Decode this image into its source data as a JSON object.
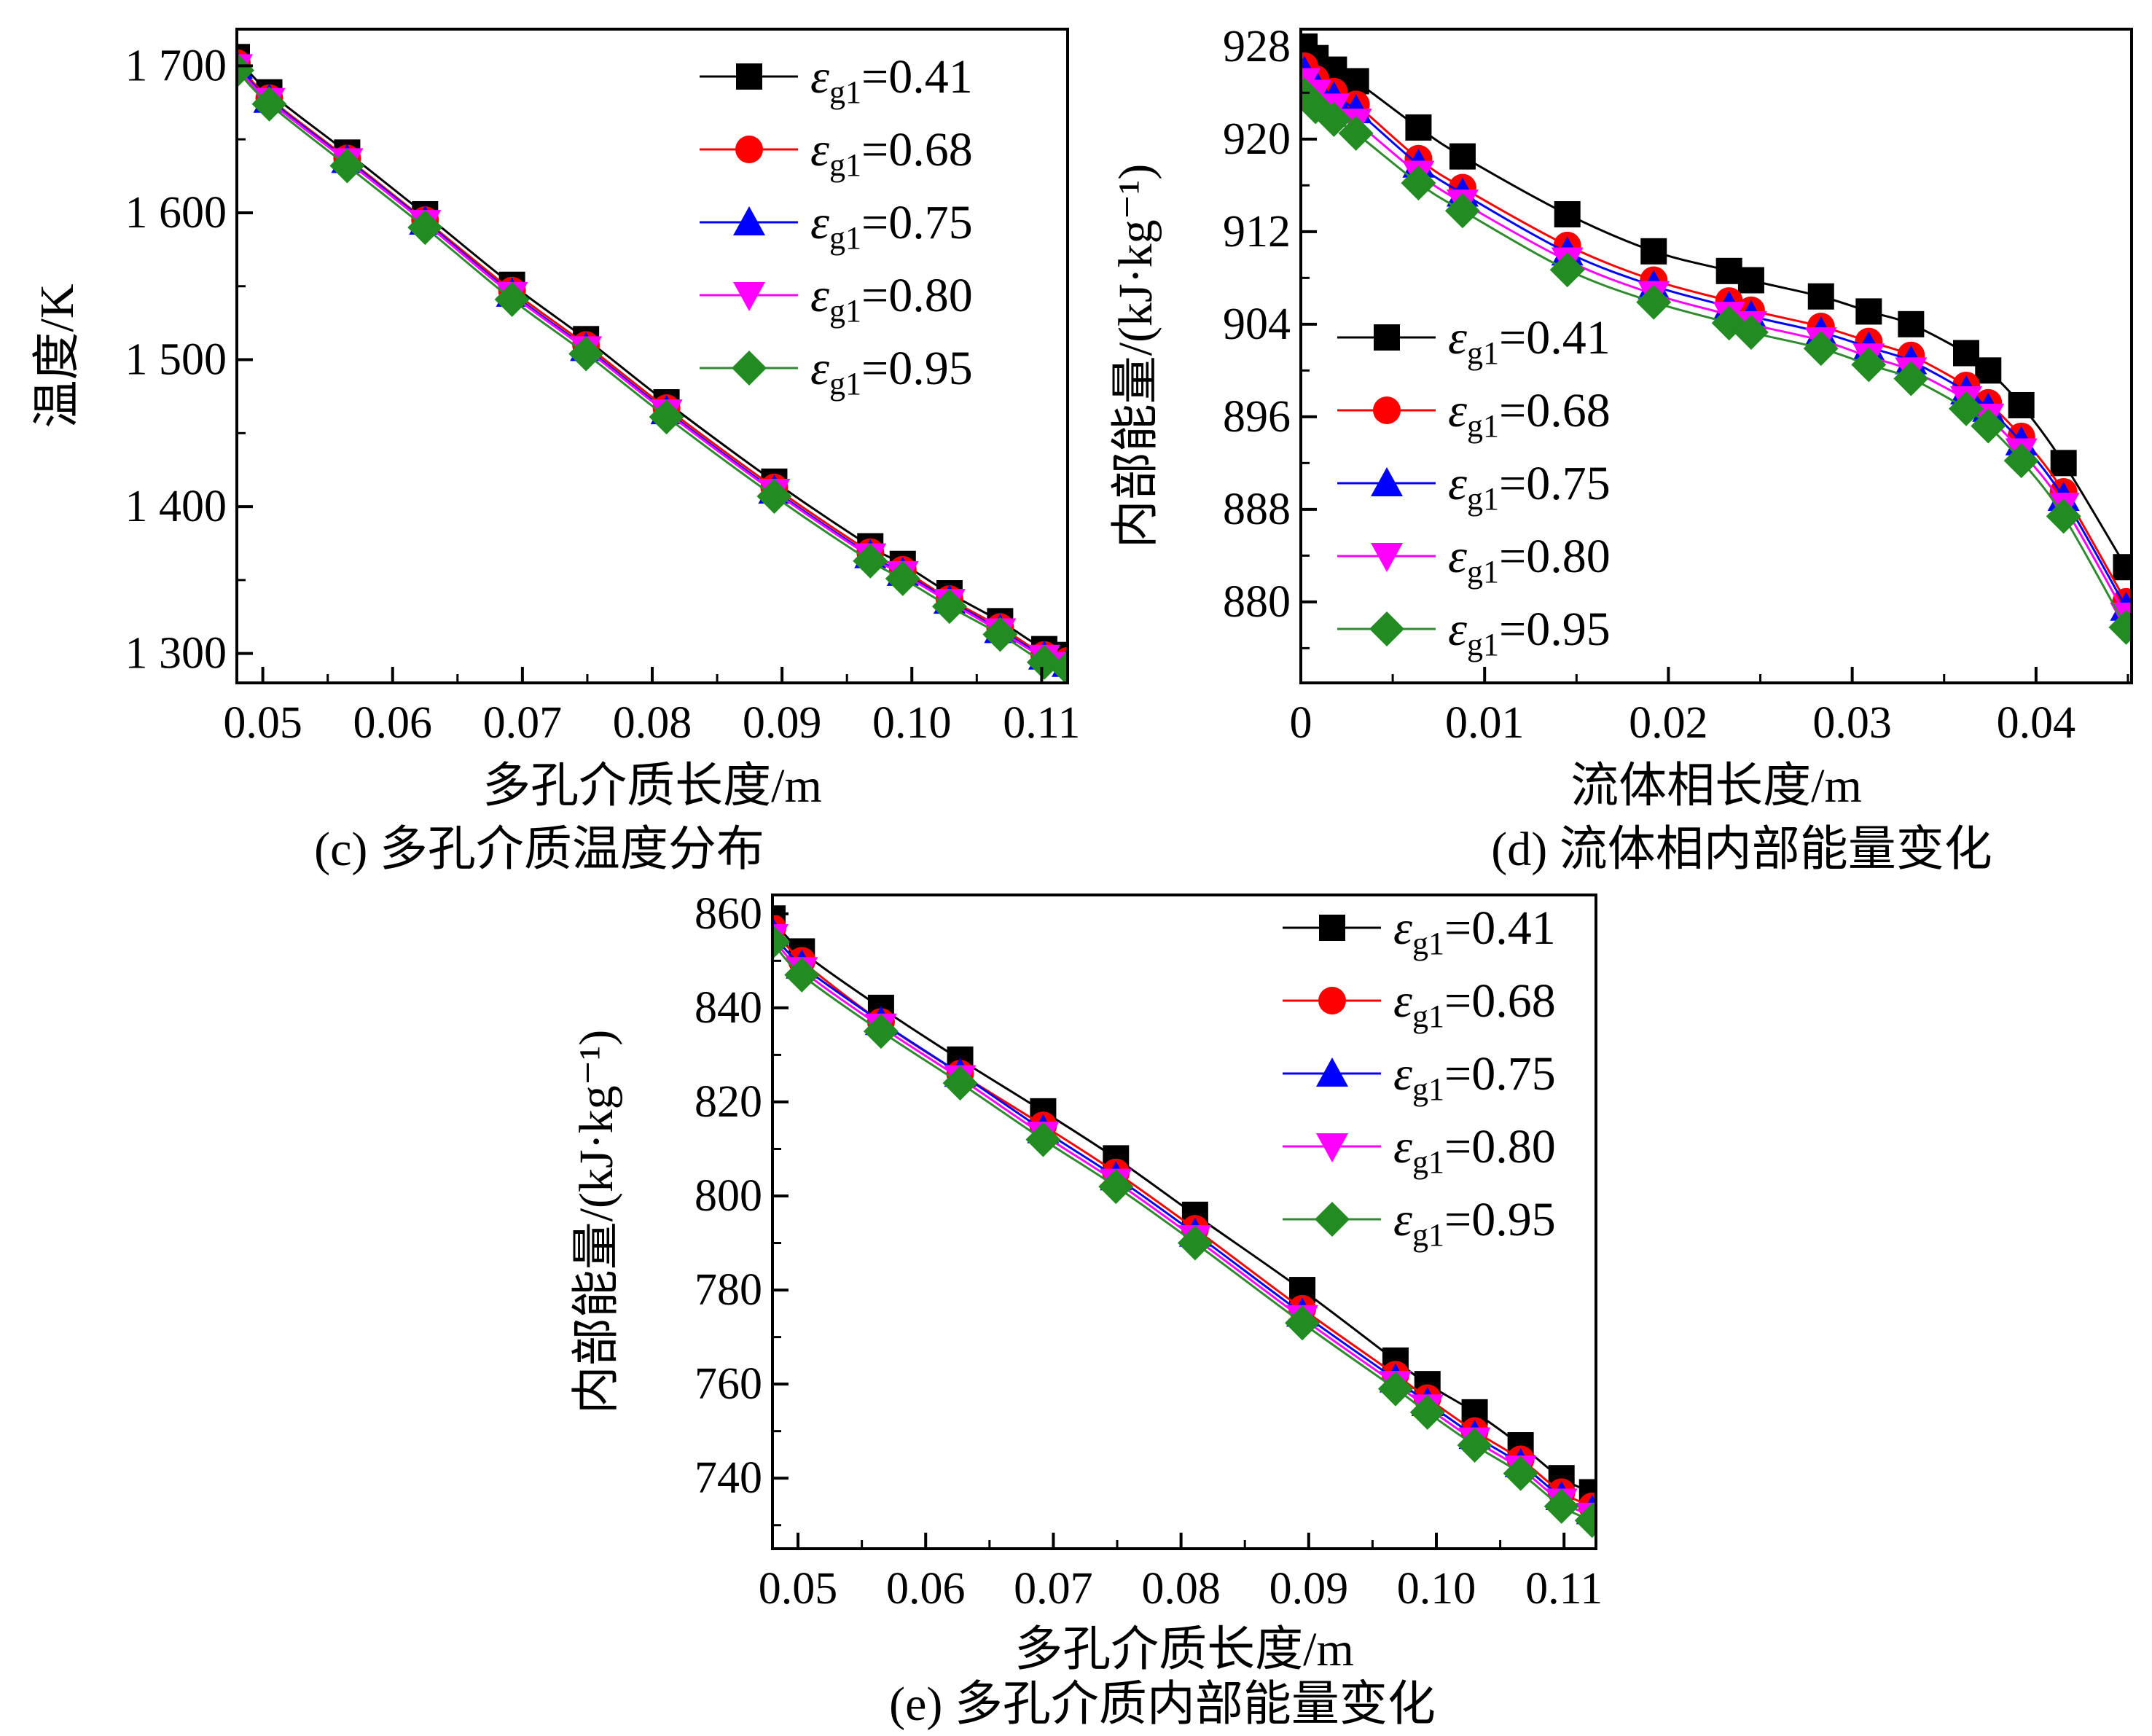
{
  "figure": {
    "captions": {
      "c": "(c) 多孔介质温度分布",
      "d": "(d) 流体相内部能量变化",
      "e": "(e) 多孔介质内部能量变化"
    },
    "legend_text_lead": "ε"
  },
  "chart_data": [
    {
      "id": "c",
      "type": "line",
      "title": "",
      "xlabel": "多孔介质长度/m",
      "ylabel": "温度/K",
      "xlim": [
        0.048,
        0.112
      ],
      "ylim": [
        1280,
        1725
      ],
      "xticks": [
        0.05,
        0.06,
        0.07,
        0.08,
        0.09,
        0.1,
        0.11
      ],
      "xtick_labels": [
        "0.05",
        "0.06",
        "0.07",
        "0.08",
        "0.09",
        "0.10",
        "0.11"
      ],
      "yticks": [
        1300,
        1400,
        1500,
        1600,
        1700
      ],
      "ytick_labels": [
        "1 300",
        "1 400",
        "1 500",
        "1 600",
        "1 700"
      ],
      "legend_position": "top-right",
      "grid": false,
      "x": [
        0.048,
        0.0505,
        0.0565,
        0.0625,
        0.0692,
        0.0749,
        0.0811,
        0.0894,
        0.0968,
        0.0993,
        0.1029,
        0.1068,
        0.1102,
        0.112
      ],
      "series": [
        {
          "name": "εg1=0.41",
          "marker": "square",
          "color": "#000000",
          "values": [
            1706,
            1682,
            1641,
            1599,
            1551,
            1514,
            1471,
            1417,
            1373,
            1361,
            1341,
            1322,
            1303,
            1299
          ]
        },
        {
          "name": "εg1=0.68",
          "marker": "circle",
          "color": "#ff0000",
          "values": [
            1702,
            1678,
            1637,
            1595,
            1547,
            1510,
            1467,
            1413,
            1369,
            1357,
            1337,
            1318,
            1299,
            1295
          ]
        },
        {
          "name": "εg1=0.75",
          "marker": "triangle-up",
          "color": "#0000ff",
          "values": [
            1700,
            1677,
            1636,
            1594,
            1545,
            1508,
            1465,
            1411,
            1367,
            1355,
            1336,
            1316,
            1298,
            1293
          ]
        },
        {
          "name": "εg1=0.80",
          "marker": "triangle-down",
          "color": "#ff00ff",
          "values": [
            1699,
            1676,
            1635,
            1593,
            1544,
            1507,
            1464,
            1410,
            1366,
            1354,
            1335,
            1315,
            1297,
            1292
          ]
        },
        {
          "name": "εg1=0.95",
          "marker": "diamond",
          "color": "#228b22",
          "values": [
            1697,
            1674,
            1632,
            1590,
            1541,
            1504,
            1461,
            1407,
            1363,
            1351,
            1332,
            1313,
            1294,
            1290
          ]
        }
      ]
    },
    {
      "id": "d",
      "type": "line",
      "title": "",
      "xlabel": "流体相长度/m",
      "ylabel": "内部能量/(kJ·kg⁻¹)",
      "xlim": [
        0,
        0.0452
      ],
      "ylim": [
        873,
        929.5
      ],
      "xticks": [
        0,
        0.01,
        0.02,
        0.03,
        0.04
      ],
      "xtick_labels": [
        "0",
        "0.01",
        "0.02",
        "0.03",
        "0.04"
      ],
      "yticks": [
        880,
        888,
        896,
        904,
        912,
        920,
        928
      ],
      "ytick_labels": [
        "880",
        "888",
        "896",
        "904",
        "912",
        "920",
        "928"
      ],
      "legend_position": "left-middle",
      "grid": false,
      "x": [
        0.0002,
        0.0008,
        0.0018,
        0.003,
        0.0064,
        0.0088,
        0.0145,
        0.0192,
        0.0233,
        0.0245,
        0.0283,
        0.0309,
        0.0332,
        0.0362,
        0.0374,
        0.0392,
        0.0415,
        0.0449
      ],
      "series": [
        {
          "name": "εg1=0.41",
          "marker": "square",
          "color": "#000000",
          "values": [
            928.0,
            927.0,
            926.0,
            925.0,
            921.0,
            918.5,
            913.5,
            910.3,
            908.6,
            907.8,
            906.4,
            905.1,
            904.0,
            901.5,
            900.0,
            897.0,
            892.0,
            883.0
          ]
        },
        {
          "name": "εg1=0.68",
          "marker": "circle",
          "color": "#ff0000",
          "values": [
            926.3,
            925.2,
            924.1,
            923.0,
            918.3,
            915.8,
            910.8,
            907.8,
            906.0,
            905.2,
            903.8,
            902.5,
            901.3,
            898.7,
            897.2,
            894.3,
            889.5,
            880.0
          ]
        },
        {
          "name": "εg1=0.75",
          "marker": "triangle-up",
          "color": "#0000ff",
          "values": [
            925.8,
            924.7,
            923.6,
            922.5,
            917.8,
            915.3,
            910.2,
            907.3,
            905.5,
            904.7,
            903.3,
            902.0,
            900.8,
            898.2,
            896.7,
            893.8,
            889.0,
            879.5
          ]
        },
        {
          "name": "εg1=0.80",
          "marker": "triangle-down",
          "color": "#ff00ff",
          "values": [
            925.0,
            924.0,
            922.8,
            921.5,
            917.0,
            914.5,
            909.5,
            906.6,
            904.8,
            904.0,
            902.6,
            901.2,
            900.0,
            897.5,
            896.0,
            893.0,
            888.3,
            878.8
          ]
        },
        {
          "name": "εg1=0.95",
          "marker": "diamond",
          "color": "#228b22",
          "values": [
            923.8,
            922.8,
            921.7,
            920.5,
            916.2,
            913.8,
            908.7,
            905.9,
            904.1,
            903.3,
            901.9,
            900.5,
            899.3,
            896.7,
            895.2,
            892.2,
            887.4,
            877.8
          ]
        }
      ]
    },
    {
      "id": "e",
      "type": "line",
      "title": "",
      "xlabel": "多孔介质长度/m",
      "ylabel": "内部能量/(kJ·kg⁻¹)",
      "xlim": [
        0.048,
        0.1125
      ],
      "ylim": [
        725,
        864
      ],
      "xticks": [
        0.05,
        0.06,
        0.07,
        0.08,
        0.09,
        0.1,
        0.11
      ],
      "xtick_labels": [
        "0.05",
        "0.06",
        "0.07",
        "0.08",
        "0.09",
        "0.10",
        "0.11"
      ],
      "yticks": [
        740,
        760,
        780,
        800,
        820,
        840,
        860
      ],
      "ytick_labels": [
        "740",
        "760",
        "780",
        "800",
        "820",
        "840",
        "860"
      ],
      "legend_position": "top-right",
      "grid": false,
      "x": [
        0.048,
        0.0503,
        0.0565,
        0.0627,
        0.0692,
        0.0749,
        0.0811,
        0.0895,
        0.0968,
        0.0993,
        0.103,
        0.1066,
        0.1098,
        0.1122
      ],
      "series": [
        {
          "name": "εg1=0.41",
          "marker": "square",
          "color": "#000000",
          "values": [
            859,
            852,
            840,
            829,
            818,
            808,
            796,
            780,
            765,
            760,
            754,
            747,
            740,
            737
          ]
        },
        {
          "name": "εg1=0.68",
          "marker": "circle",
          "color": "#ff0000",
          "values": [
            857,
            850,
            837,
            826,
            815,
            805,
            793,
            776,
            762,
            757,
            750,
            744,
            737,
            734
          ]
        },
        {
          "name": "εg1=0.75",
          "marker": "triangle-up",
          "color": "#0000ff",
          "values": [
            856,
            849,
            837,
            826,
            814,
            804,
            792,
            775,
            761,
            756,
            749,
            743,
            736,
            733
          ]
        },
        {
          "name": "εg1=0.80",
          "marker": "triangle-down",
          "color": "#ff00ff",
          "values": [
            855,
            848,
            836,
            825,
            813,
            803,
            791,
            774,
            760,
            755,
            748,
            742,
            735,
            732
          ]
        },
        {
          "name": "εg1=0.95",
          "marker": "diamond",
          "color": "#228b22",
          "values": [
            854,
            847,
            835,
            824,
            812,
            802,
            790,
            773,
            759,
            754,
            747,
            741,
            734,
            731
          ]
        }
      ]
    }
  ]
}
